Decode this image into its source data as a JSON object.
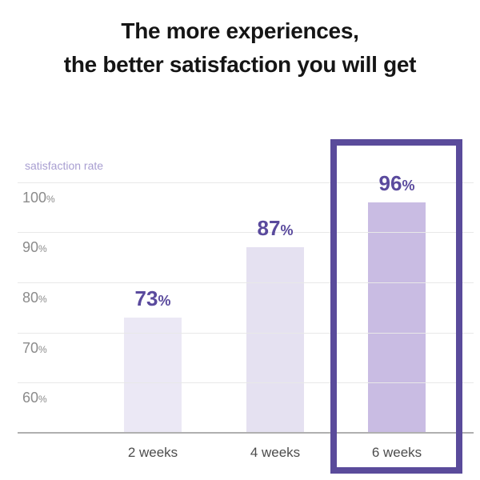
{
  "title": {
    "line1": "The more experiences,",
    "line2": "the better satisfaction you will get"
  },
  "chart_data": {
    "type": "bar",
    "title": "The more experiences, the better satisfaction you will get",
    "ylabel": "satisfaction rate",
    "xlabel": "",
    "categories": [
      "2 weeks",
      "4 weeks",
      "6 weeks"
    ],
    "values": [
      73,
      87,
      96
    ],
    "value_suffix": "%",
    "yticks": [
      100,
      90,
      80,
      70,
      60
    ],
    "ytick_suffix": "%",
    "ylim": [
      50,
      105
    ],
    "grid": "horizontal",
    "legend": "none",
    "highlighted_category": "6 weeks",
    "colors": {
      "bar_fills": [
        "#ebe8f5",
        "#e5e1f1",
        "#c9bce3"
      ],
      "value_label": "#5a4a9d",
      "axis_title": "#a89ed1",
      "tick_label": "#8b8b8b",
      "gridline": "#e8e8e8",
      "baseline": "#b0b0b0",
      "highlight_border": "#5a4b9b",
      "category_label": "#4c4c4c",
      "title_text": "#151515"
    }
  }
}
